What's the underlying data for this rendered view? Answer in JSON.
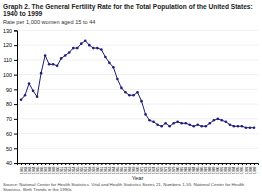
{
  "chart_data": {
    "type": "line",
    "title": "Graph 2.  The General Fertility Rate for the Total Population of the United States: 1940 to 1999",
    "subtitle": "Rate per 1,000 women aged 15 to 44",
    "xlabel": "Year",
    "source": "Source:  National Center for Health Statistics.  Vital and Health Statistics Series 21, Numbers 1-55. National Center for Health Statistics.  Birth Trends in the 1990s",
    "x": [
      1941,
      1942,
      1943,
      1944,
      1945,
      1946,
      1947,
      1948,
      1949,
      1950,
      1951,
      1952,
      1953,
      1954,
      1955,
      1956,
      1957,
      1958,
      1959,
      1960,
      1961,
      1962,
      1963,
      1964,
      1965,
      1966,
      1967,
      1968,
      1969,
      1970,
      1971,
      1972,
      1973,
      1974,
      1975,
      1976,
      1977,
      1978,
      1979,
      1980,
      1981,
      1982,
      1983,
      1984,
      1985,
      1986,
      1987,
      1988,
      1989,
      1990,
      1991,
      1992,
      1993,
      1994,
      1995,
      1996,
      1997,
      1998,
      1999
    ],
    "values": [
      83,
      86,
      94,
      89,
      85,
      101,
      113,
      107,
      107,
      106,
      111,
      113,
      115,
      118,
      118,
      121,
      123,
      120,
      118,
      118,
      117,
      112,
      108,
      105,
      97,
      91,
      88,
      86,
      86,
      88,
      82,
      73,
      69,
      68,
      66,
      65,
      67,
      65,
      67,
      68,
      67,
      67,
      66,
      65,
      66,
      65,
      65,
      67,
      69,
      70,
      69,
      68,
      66,
      65,
      65,
      65,
      64,
      64,
      64
    ],
    "color": "#1f1f7a",
    "marker": "circle",
    "xlim": [
      1940,
      2000
    ],
    "xticks": [
      1941,
      1942,
      1943,
      1944,
      1945,
      1946,
      1947,
      1948,
      1949,
      1950,
      1951,
      1952,
      1953,
      1954,
      1955,
      1956,
      1957,
      1958,
      1959,
      1960,
      1961,
      1962,
      1963,
      1964,
      1965,
      1966,
      1967,
      1968,
      1969,
      1970,
      1971,
      1972,
      1973,
      1974,
      1975,
      1976,
      1977,
      1978,
      1979,
      1980,
      1981,
      1982,
      1983,
      1984,
      1985,
      1986,
      1987,
      1988,
      1989,
      1990,
      1991,
      1992,
      1993,
      1994,
      1995,
      1996,
      1997,
      1998,
      1999
    ],
    "ylim": [
      40,
      130
    ],
    "yticks": [
      40,
      50,
      60,
      70,
      80,
      90,
      100,
      110,
      120,
      130
    ],
    "grid": "y"
  }
}
